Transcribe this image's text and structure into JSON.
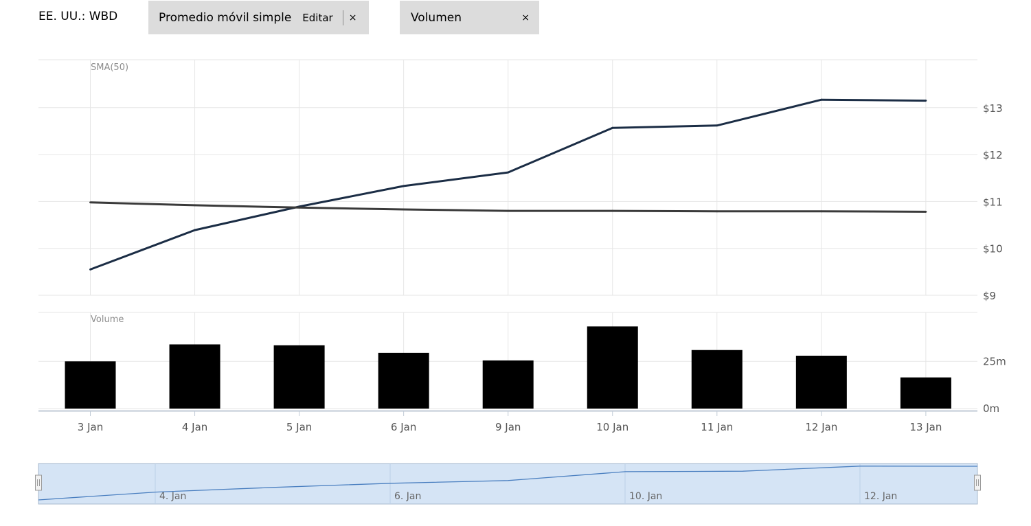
{
  "header": {
    "ticker": "EE. UU.: WBD",
    "indicator_chip": {
      "label": "Promedio móvil simple",
      "edit_label": "Editar",
      "close_label": "×"
    },
    "volume_chip": {
      "label": "Volumen",
      "close_label": "×"
    }
  },
  "chart_data": [
    {
      "type": "line",
      "title": "SMA(50)",
      "categories": [
        "3 Jan",
        "4 Jan",
        "5 Jan",
        "6 Jan",
        "9 Jan",
        "10 Jan",
        "11 Jan",
        "12 Jan",
        "13 Jan"
      ],
      "series": [
        {
          "values": [
            9.55,
            10.39,
            10.89,
            11.33,
            11.62,
            12.57,
            12.62,
            13.17,
            13.15
          ],
          "color": "#1b2d45"
        },
        {
          "name": "SMA(50)",
          "values": [
            10.98,
            10.92,
            10.87,
            10.83,
            10.8,
            10.8,
            10.79,
            10.79,
            10.78
          ],
          "color": "#3a3a3a"
        }
      ],
      "ylim": [
        9,
        14
      ],
      "yticks": [
        {
          "value": 9,
          "label": "$9"
        },
        {
          "value": 10,
          "label": "$10"
        },
        {
          "value": 11,
          "label": "$11"
        },
        {
          "value": 12,
          "label": "$12"
        },
        {
          "value": 13,
          "label": "$13"
        }
      ],
      "grid": true
    },
    {
      "type": "bar",
      "title": "Volume",
      "categories": [
        "3 Jan",
        "4 Jan",
        "5 Jan",
        "6 Jan",
        "9 Jan",
        "10 Jan",
        "11 Jan",
        "12 Jan",
        "13 Jan"
      ],
      "values": [
        25,
        34,
        33.5,
        29.5,
        25.5,
        43.5,
        31,
        28,
        16.5
      ],
      "unit": "m",
      "ylim": [
        0,
        51
      ],
      "yticks": [
        {
          "value": 0,
          "label": "0m"
        },
        {
          "value": 25,
          "label": "25m"
        }
      ],
      "bar_color": "#000000",
      "grid": true
    }
  ],
  "navigator": {
    "labels": [
      "4. Jan",
      "6. Jan",
      "10. Jan",
      "12. Jan"
    ],
    "series": [
      9.55,
      10.39,
      10.89,
      11.33,
      11.62,
      12.57,
      12.62,
      13.17,
      13.15
    ],
    "fill_color": "#d5e4f5",
    "line_color": "#4a7fc0"
  }
}
